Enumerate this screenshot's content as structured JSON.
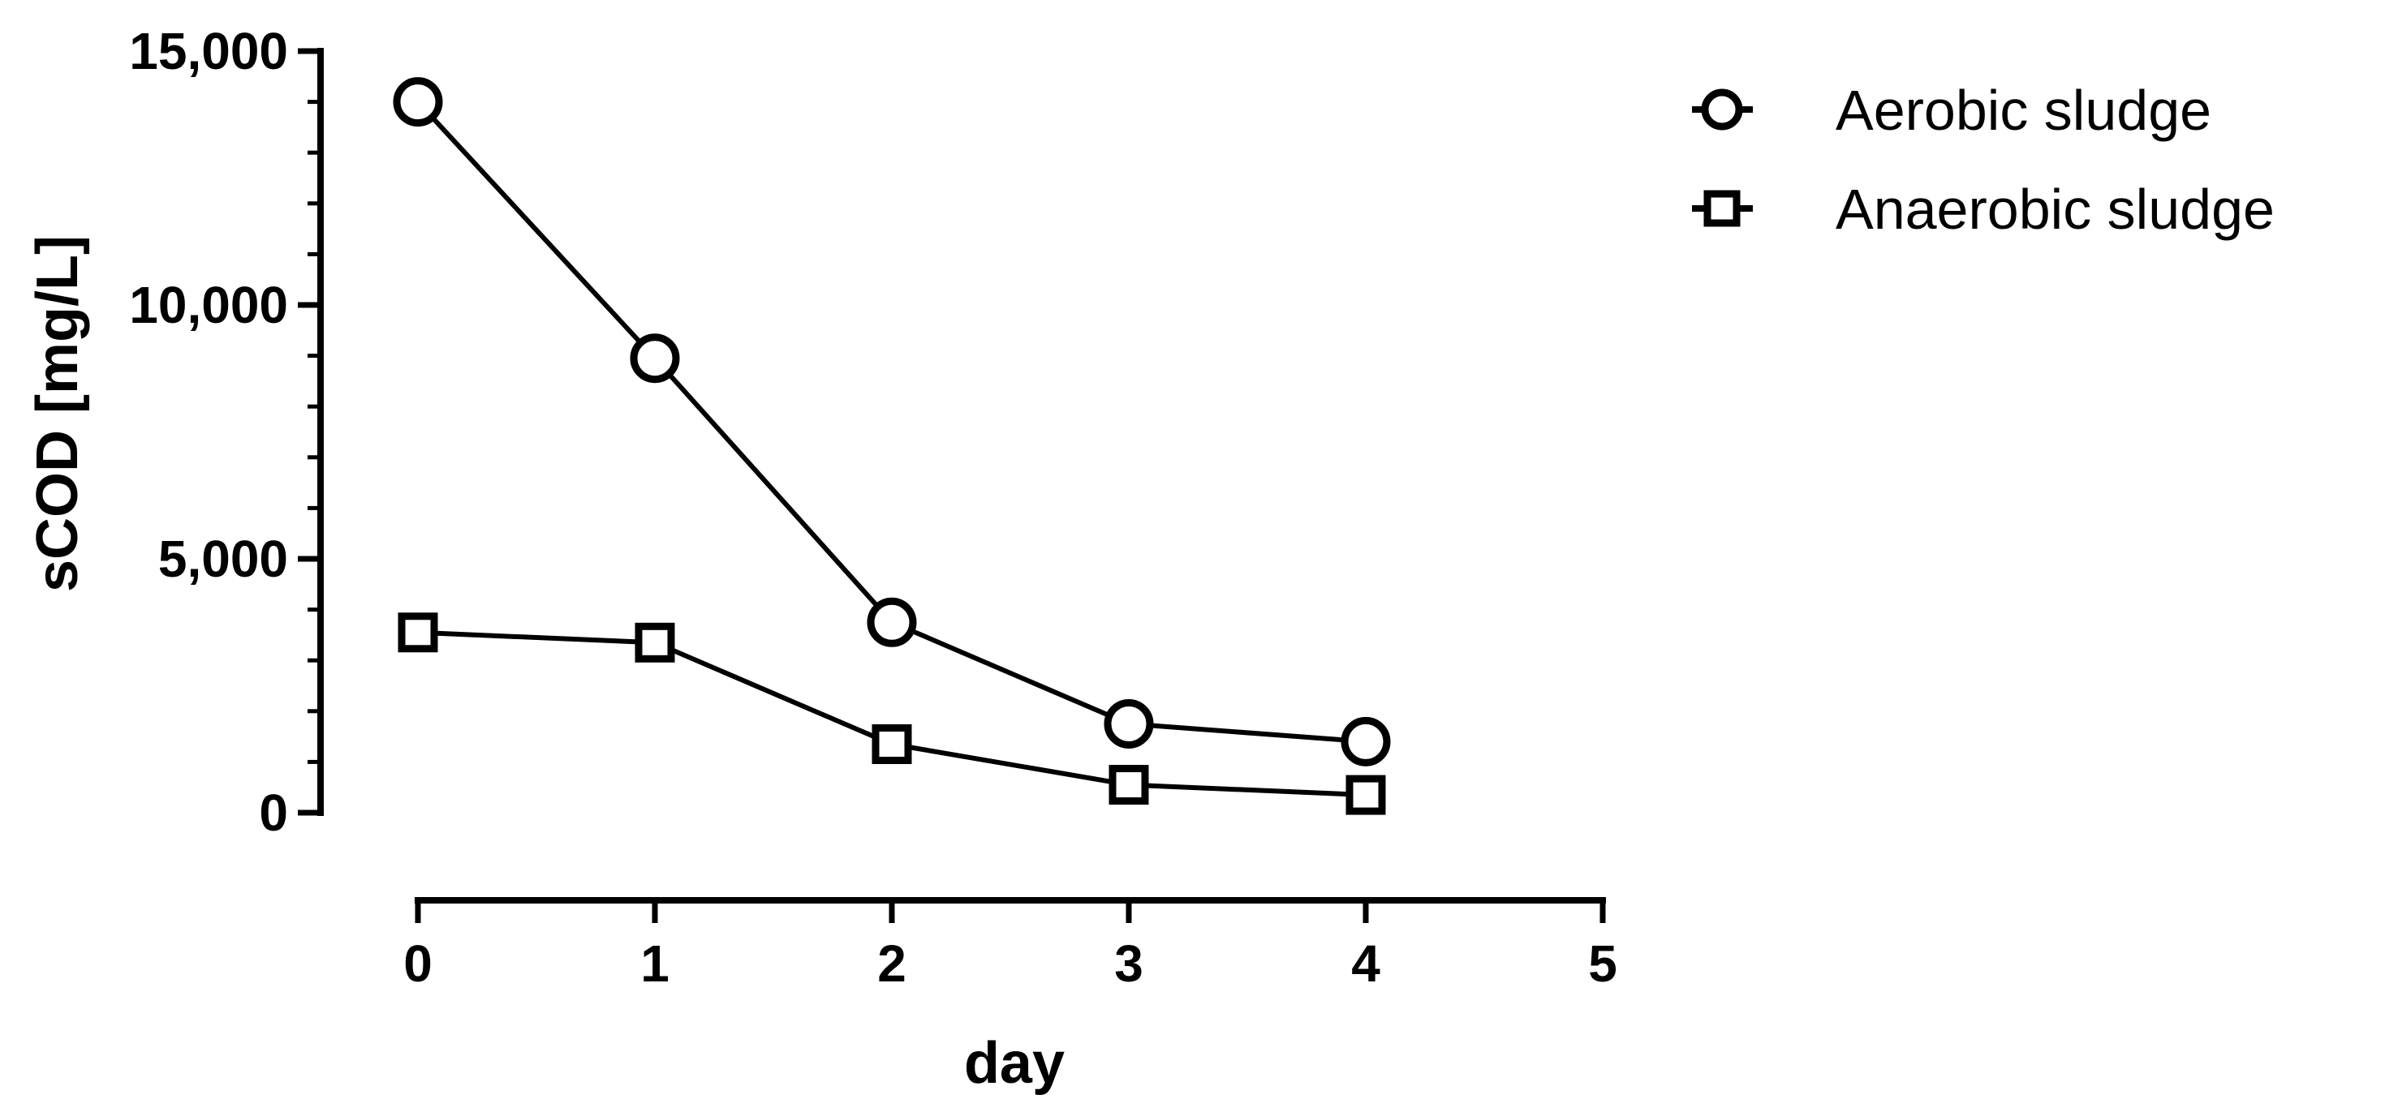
{
  "chart_data": {
    "type": "line",
    "xlabel": "day",
    "ylabel": "sCOD [mg/L]",
    "xlim": [
      0,
      5
    ],
    "ylim": [
      0,
      15000
    ],
    "x_ticks": [
      "0",
      "1",
      "2",
      "3",
      "4",
      "5"
    ],
    "y_ticks": [
      "0",
      "5,000",
      "10,000",
      "15,000"
    ],
    "x_tick_values": [
      0,
      1,
      2,
      3,
      4,
      5
    ],
    "y_tick_values": [
      0,
      5000,
      10000,
      15000
    ],
    "y_minor_step": 1000,
    "grid": false,
    "legend_position": "top-right",
    "series": [
      {
        "name": "Aerobic sludge",
        "marker": "circle",
        "x": [
          0,
          1,
          2,
          3,
          4
        ],
        "values": [
          14000,
          8950,
          3750,
          1750,
          1400
        ]
      },
      {
        "name": "Anaerobic sludge",
        "marker": "square",
        "x": [
          0,
          1,
          2,
          3,
          4
        ],
        "values": [
          3550,
          3350,
          1350,
          550,
          350
        ]
      }
    ]
  }
}
